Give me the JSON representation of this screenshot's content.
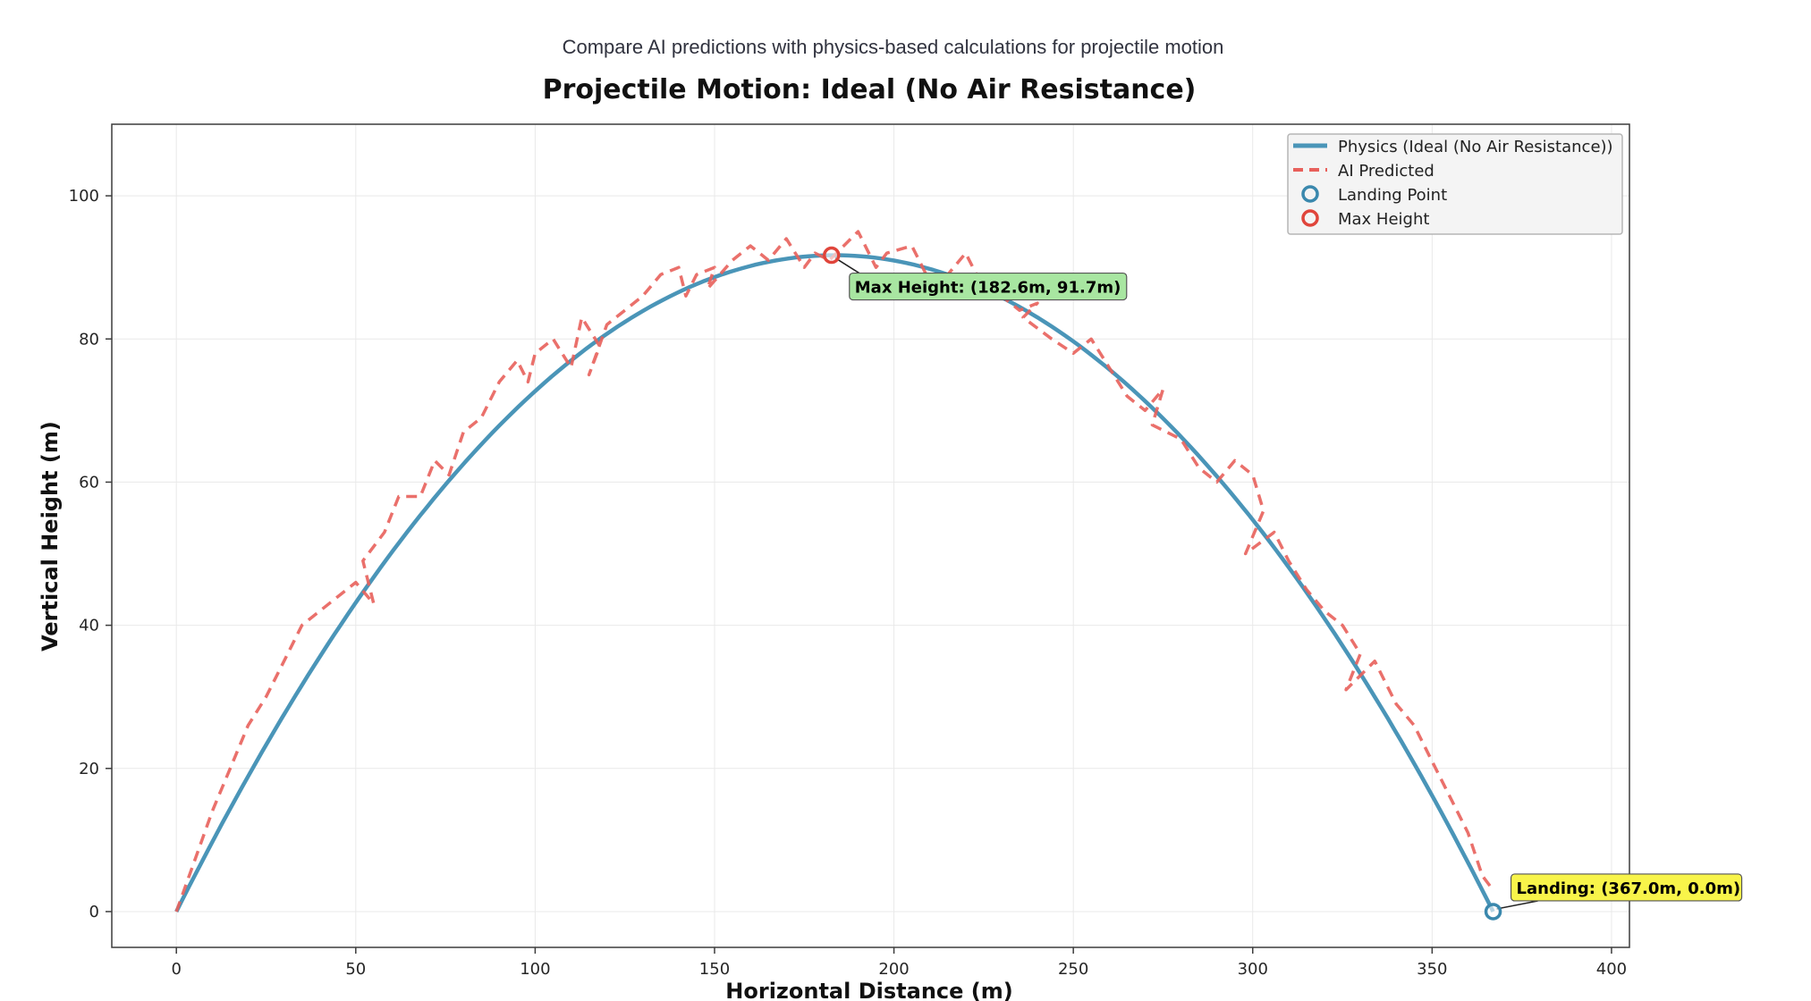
{
  "page": {
    "subtitle": "Compare AI predictions with physics-based calculations for projectile motion"
  },
  "chart_data": {
    "type": "line",
    "title": "Projectile Motion: Ideal (No Air Resistance)",
    "xlabel": "Horizontal Distance (m)",
    "ylabel": "Vertical Height (m)",
    "xlim": [
      -18,
      405
    ],
    "ylim": [
      -5,
      110
    ],
    "xticks": [
      0,
      50,
      100,
      150,
      200,
      250,
      300,
      350,
      400
    ],
    "yticks": [
      0,
      20,
      40,
      60,
      80,
      100
    ],
    "grid": true,
    "legend_position": "top-right",
    "colors": {
      "physics": "#4a95b8",
      "ai": "#e8605b",
      "max_marker": "#e0453b",
      "landing_marker": "#3a88ad",
      "max_box": "#a8e6a1",
      "landing_box": "#f8f44a"
    },
    "physics": {
      "name": "Physics (Ideal (No Air Resistance))",
      "range": 367.0,
      "max_height": 91.7
    },
    "ai_predicted": {
      "name": "AI Predicted",
      "x": [
        0,
        5,
        10,
        15,
        20,
        25,
        30,
        35,
        40,
        45,
        50,
        55,
        52,
        58,
        62,
        68,
        72,
        76,
        80,
        85,
        90,
        95,
        98,
        100,
        105,
        110,
        113,
        118,
        115,
        120,
        125,
        130,
        135,
        140,
        142,
        145,
        150,
        148,
        155,
        160,
        165,
        170,
        175,
        178,
        182,
        186,
        190,
        195,
        198,
        205,
        210,
        215,
        220,
        225,
        230,
        235,
        240,
        236,
        244,
        250,
        255,
        260,
        265,
        270,
        275,
        272,
        280,
        285,
        290,
        295,
        300,
        303,
        298,
        306,
        310,
        315,
        320,
        325,
        330,
        326,
        334,
        340,
        345,
        350,
        355,
        360,
        364,
        367
      ],
      "y": [
        0,
        7,
        14,
        20,
        26,
        30,
        35,
        40,
        42,
        44,
        46,
        43,
        49,
        53,
        58,
        58,
        63,
        61,
        67,
        69,
        74,
        77,
        74,
        78,
        80,
        76,
        83,
        79,
        75,
        82,
        84,
        86,
        89,
        90,
        86,
        89,
        90,
        87,
        91,
        93,
        91,
        94,
        90,
        92,
        91,
        93,
        95,
        90,
        92,
        93,
        88,
        89,
        92,
        87,
        86,
        84,
        85,
        83,
        80,
        78,
        80,
        76,
        72,
        70,
        73,
        68,
        66,
        62,
        60,
        63,
        61,
        56,
        50,
        53,
        49,
        45,
        42,
        40,
        36,
        31,
        35,
        29,
        26,
        21,
        16,
        11,
        5,
        3
      ]
    },
    "annotations": [
      {
        "kind": "max",
        "label": "Max Height",
        "text": "Max Height: (182.6m, 91.7m)",
        "x": 182.6,
        "y": 91.7
      },
      {
        "kind": "landing",
        "label": "Landing Point",
        "text": "Landing: (367.0m, 0.0m)",
        "x": 367.0,
        "y": 0.0
      }
    ]
  }
}
